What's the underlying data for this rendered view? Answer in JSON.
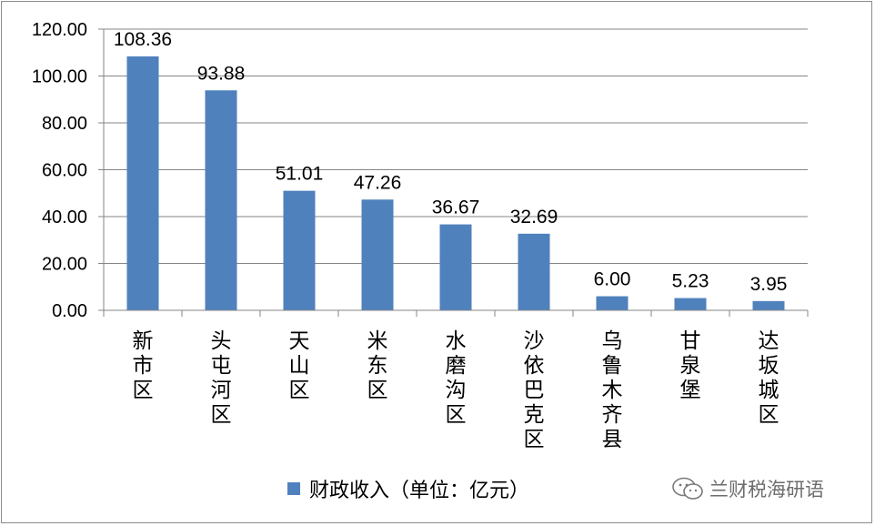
{
  "chart_data": {
    "type": "bar",
    "categories": [
      "新市区",
      "头屯河区",
      "天山区",
      "米东区",
      "水磨沟区",
      "沙依巴克区",
      "乌鲁木齐县",
      "甘泉堡",
      "达坂城区"
    ],
    "series": [
      {
        "name": "财政收入（单位：亿元）",
        "values": [
          108.36,
          93.88,
          51.01,
          47.26,
          36.67,
          32.69,
          6.0,
          5.23,
          3.95
        ]
      }
    ],
    "value_labels": [
      "108.36",
      "93.88",
      "51.01",
      "47.26",
      "36.67",
      "32.69",
      "6.00",
      "5.23",
      "3.95"
    ],
    "ylim": [
      0,
      120
    ],
    "yticks": [
      "0.00",
      "20.00",
      "40.00",
      "60.00",
      "80.00",
      "100.00",
      "120.00"
    ],
    "grid": true,
    "legend_position": "bottom",
    "bar_color": "#4f81bd",
    "grid_color": "#868686"
  },
  "legend": {
    "label": "财政收入（单位：亿元）"
  },
  "watermark": {
    "text": "兰财税海研语",
    "icon": "wechat-icon"
  }
}
